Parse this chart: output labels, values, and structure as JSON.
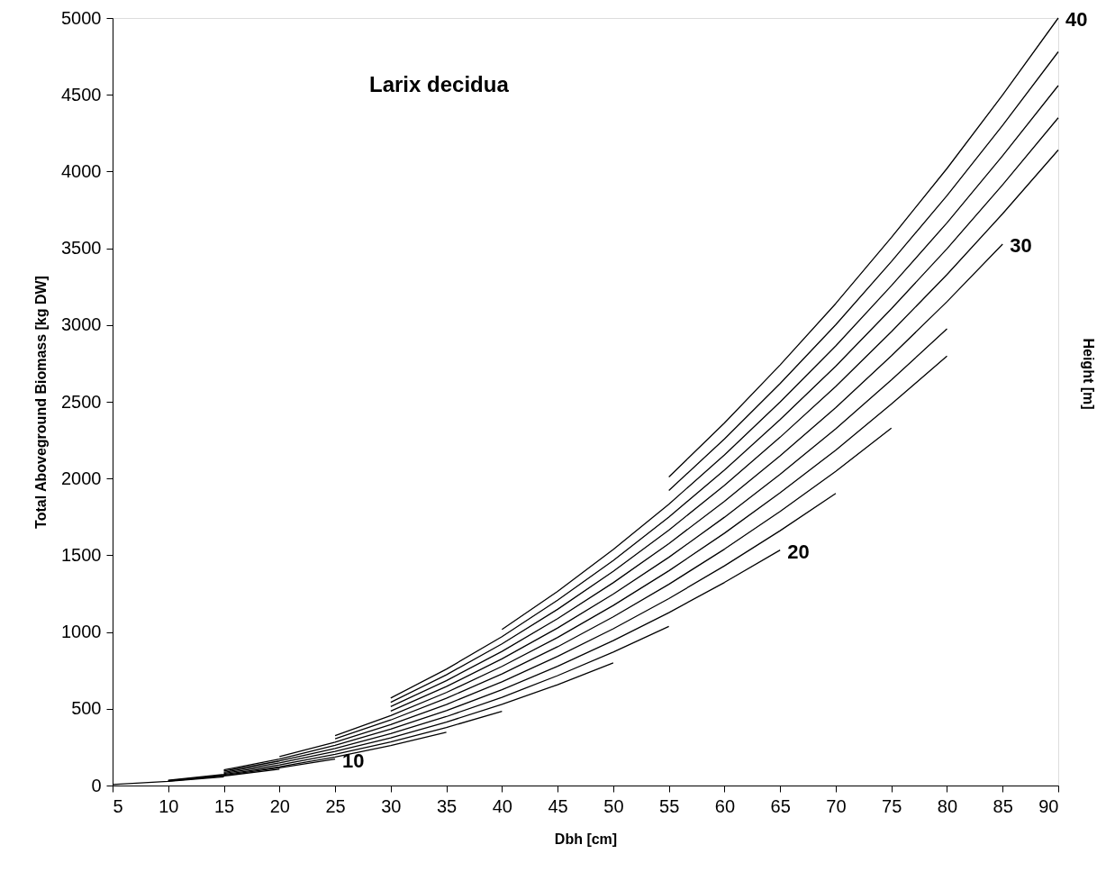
{
  "chart_data": {
    "type": "line",
    "title": "Larix decidua",
    "xlabel": "Dbh [cm]",
    "ylabel": "Total Aboveground Biomass [kg DW]",
    "y2label": "Height [m]",
    "xlim": [
      5,
      90
    ],
    "ylim": [
      0,
      5000
    ],
    "xticks": [
      5,
      10,
      15,
      20,
      25,
      30,
      35,
      40,
      45,
      50,
      55,
      60,
      65,
      70,
      75,
      80,
      85,
      90
    ],
    "yticks": [
      0,
      500,
      1000,
      1500,
      2000,
      2500,
      3000,
      3500,
      4000,
      4500,
      5000
    ],
    "grid": false,
    "marker": "none",
    "line_style": "solid",
    "series": [
      {
        "color": "#000000",
        "x": [
          5,
          10,
          15
        ],
        "values": [
          7,
          27,
          57
        ]
      },
      {
        "color": "#000000",
        "x": [
          10,
          15,
          20
        ],
        "values": [
          29,
          62,
          106
        ]
      },
      {
        "name": "10",
        "color": "#000000",
        "x": [
          10,
          15,
          20,
          25
        ],
        "values": [
          32,
          67,
          115,
          173
        ]
      },
      {
        "color": "#000000",
        "x": [
          10,
          15,
          20,
          25,
          30,
          35
        ],
        "values": [
          34,
          72,
          123,
          186,
          261,
          347
        ]
      },
      {
        "color": "#000000",
        "x": [
          15,
          20,
          25,
          30,
          35,
          40
        ],
        "values": [
          79,
          134,
          203,
          284,
          378,
          484
        ]
      },
      {
        "color": "#000000",
        "x": [
          15,
          20,
          25,
          30,
          35,
          40,
          45,
          50
        ],
        "values": [
          86,
          147,
          222,
          310,
          413,
          529,
          657,
          799
        ]
      },
      {
        "color": "#000000",
        "x": [
          15,
          20,
          25,
          30,
          35,
          40,
          45,
          50,
          55
        ],
        "values": [
          94,
          160,
          241,
          338,
          449,
          575,
          716,
          869,
          1037
        ]
      },
      {
        "name": "20",
        "color": "#000000",
        "x": [
          15,
          20,
          25,
          30,
          35,
          40,
          45,
          50,
          55,
          60,
          65
        ],
        "values": [
          102,
          173,
          262,
          367,
          488,
          624,
          777,
          944,
          1126,
          1323,
          1534
        ]
      },
      {
        "color": "#000000",
        "x": [
          20,
          25,
          30,
          35,
          40,
          45,
          50,
          55,
          60,
          65,
          70
        ],
        "values": [
          188,
          283,
          397,
          528,
          676,
          841,
          1021,
          1218,
          1431,
          1660,
          1903
        ]
      },
      {
        "color": "#000000",
        "x": [
          25,
          30,
          35,
          40,
          45,
          50,
          55,
          60,
          65,
          70,
          75
        ],
        "values": [
          305,
          427,
          568,
          727,
          904,
          1099,
          1311,
          1540,
          1786,
          2047,
          2328
        ]
      },
      {
        "color": "#000000",
        "x": [
          25,
          30,
          35,
          40,
          45,
          50,
          55,
          60,
          65,
          70,
          75,
          80
        ],
        "values": [
          325,
          456,
          606,
          776,
          965,
          1173,
          1399,
          1644,
          1907,
          2185,
          2485,
          2798
        ]
      },
      {
        "color": "#000000",
        "x": [
          30,
          35,
          40,
          45,
          50,
          55,
          60,
          65,
          70,
          75,
          80
        ],
        "values": [
          485,
          645,
          825,
          1026,
          1247,
          1487,
          1748,
          2028,
          2324,
          2642,
          2975
        ]
      },
      {
        "name": "30",
        "color": "#000000",
        "x": [
          30,
          35,
          40,
          45,
          50,
          55,
          60,
          65,
          70,
          75,
          80,
          85
        ],
        "values": [
          514,
          683,
          874,
          1087,
          1321,
          1576,
          1852,
          2148,
          2462,
          2799,
          3152,
          3527
        ]
      },
      {
        "color": "#000000",
        "x": [
          30,
          35,
          40,
          45,
          50,
          55,
          60,
          65,
          70,
          75,
          80,
          85,
          90
        ],
        "values": [
          542,
          721,
          923,
          1148,
          1395,
          1664,
          1956,
          2269,
          2600,
          2956,
          3329,
          3725,
          4140
        ]
      },
      {
        "color": "#000000",
        "x": [
          30,
          35,
          40,
          45,
          50,
          55,
          60,
          65,
          70,
          75,
          80,
          85,
          90
        ],
        "values": [
          570,
          758,
          970,
          1207,
          1466,
          1749,
          2055,
          2384,
          2732,
          3106,
          3497,
          3914,
          4350
        ]
      },
      {
        "color": "#000000",
        "x": [
          40,
          45,
          50,
          55,
          60,
          65,
          70,
          75,
          80,
          85,
          90
        ],
        "values": [
          1017,
          1265,
          1537,
          1833,
          2154,
          2499,
          2864,
          3256,
          3666,
          4103,
          4560
        ]
      },
      {
        "color": "#000000",
        "x": [
          55,
          60,
          65,
          70,
          75,
          80,
          85,
          90
        ],
        "values": [
          1922,
          2258,
          2619,
          3002,
          3413,
          3843,
          4301,
          4780
        ]
      },
      {
        "name": "40",
        "color": "#000000",
        "x": [
          55,
          60,
          65,
          70,
          75,
          80,
          85,
          90
        ],
        "values": [
          2010,
          2362,
          2740,
          3140,
          3570,
          4020,
          4499,
          5000
        ]
      }
    ]
  }
}
